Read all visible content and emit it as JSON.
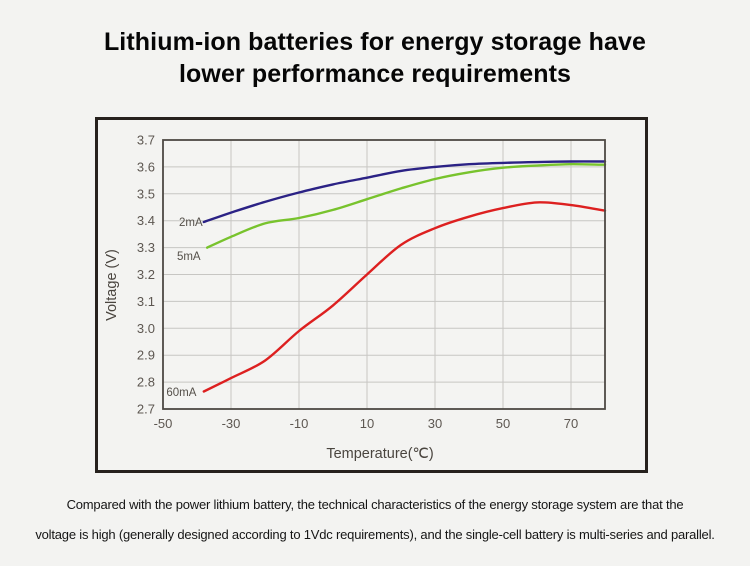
{
  "title": {
    "line1": "Lithium-ion batteries for energy storage have",
    "line2": "lower performance requirements"
  },
  "caption": {
    "line1": "Compared with the power lithium battery, the technical characteristics of the energy storage system are that the",
    "line2": "voltage is high (generally designed according to 1Vdc requirements), and the single-cell battery is multi-series and parallel."
  },
  "chart_data": {
    "type": "line",
    "title": "",
    "xlabel": "Temperature(℃)",
    "ylabel": "Voltage (V)",
    "xlim": [
      -50,
      80
    ],
    "ylim": [
      2.7,
      3.7
    ],
    "x_ticks": [
      -50,
      -30,
      -10,
      10,
      30,
      50,
      70
    ],
    "y_ticks": [
      2.7,
      2.8,
      2.9,
      3.0,
      3.1,
      3.2,
      3.3,
      3.4,
      3.5,
      3.6,
      3.7
    ],
    "grid": true,
    "legend_position": "inline-left-of-curves",
    "series": [
      {
        "name": "2mA",
        "color": "#2b2285",
        "label_pos": [
          -45.3,
          3.38
        ],
        "points": [
          [
            -38,
            3.395
          ],
          [
            -30,
            3.43
          ],
          [
            -20,
            3.47
          ],
          [
            -10,
            3.505
          ],
          [
            0,
            3.535
          ],
          [
            10,
            3.56
          ],
          [
            20,
            3.585
          ],
          [
            30,
            3.6
          ],
          [
            40,
            3.61
          ],
          [
            50,
            3.615
          ],
          [
            60,
            3.618
          ],
          [
            70,
            3.62
          ],
          [
            80,
            3.62
          ]
        ]
      },
      {
        "name": "5mA",
        "color": "#78c32d",
        "label_pos": [
          -45.9,
          3.254
        ],
        "points": [
          [
            -37,
            3.3
          ],
          [
            -30,
            3.34
          ],
          [
            -20,
            3.39
          ],
          [
            -10,
            3.41
          ],
          [
            0,
            3.44
          ],
          [
            10,
            3.48
          ],
          [
            20,
            3.52
          ],
          [
            30,
            3.555
          ],
          [
            40,
            3.58
          ],
          [
            50,
            3.597
          ],
          [
            60,
            3.605
          ],
          [
            70,
            3.61
          ],
          [
            80,
            3.608
          ]
        ]
      },
      {
        "name": "60mA",
        "color": "#dd2020",
        "label_pos": [
          -49,
          2.748
        ],
        "points": [
          [
            -38,
            2.765
          ],
          [
            -30,
            2.815
          ],
          [
            -20,
            2.88
          ],
          [
            -10,
            2.99
          ],
          [
            0,
            3.085
          ],
          [
            10,
            3.2
          ],
          [
            20,
            3.31
          ],
          [
            30,
            3.372
          ],
          [
            40,
            3.415
          ],
          [
            50,
            3.447
          ],
          [
            60,
            3.468
          ],
          [
            70,
            3.458
          ],
          [
            80,
            3.437
          ]
        ]
      }
    ]
  }
}
